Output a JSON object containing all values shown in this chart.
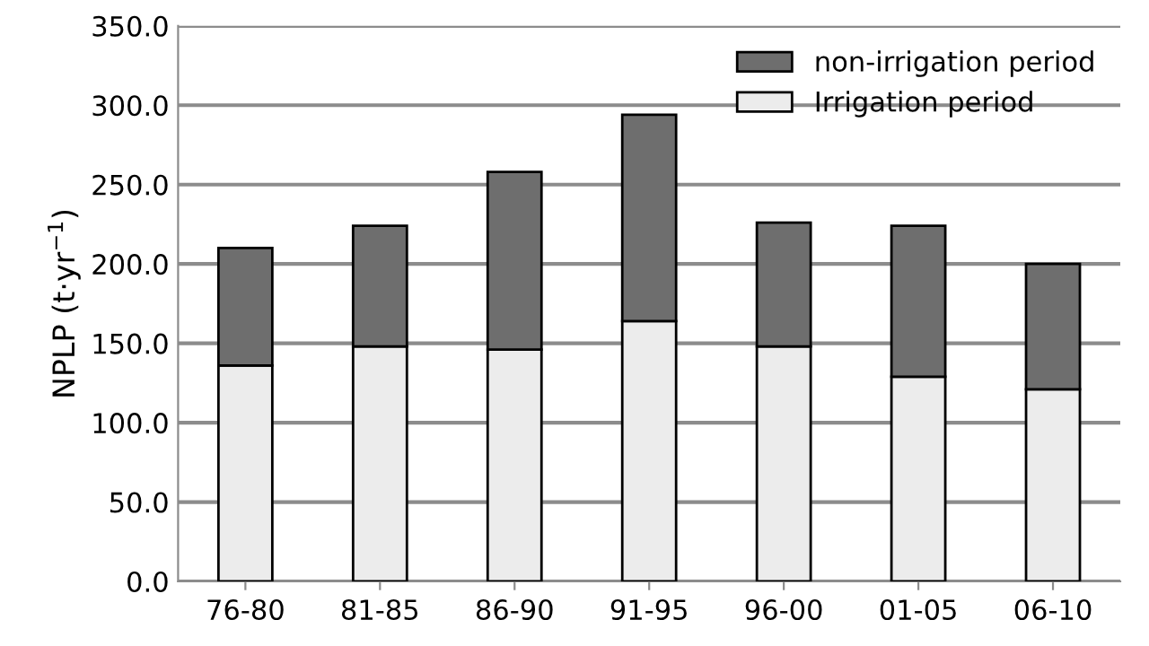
{
  "chart_data": {
    "type": "bar",
    "stacked": true,
    "ylabel": "NPLP (t·yr$^{−1}$)",
    "categories": [
      "76-80",
      "81-85",
      "86-90",
      "91-95",
      "96-00",
      "01-05",
      "06-10"
    ],
    "series": [
      {
        "name": "Irrigation period",
        "color": "#ececec",
        "values": [
          136,
          148,
          146,
          164,
          148,
          129,
          121
        ]
      },
      {
        "name": "non-irrigation period",
        "color": "#6e6e6e",
        "values": [
          74,
          76,
          112,
          130,
          78,
          95,
          79
        ]
      }
    ],
    "ylim": [
      0,
      350
    ],
    "yticks": [
      {
        "value": 0,
        "label": "0.0"
      },
      {
        "value": 50,
        "label": "50.0"
      },
      {
        "value": 100,
        "label": "100.0"
      },
      {
        "value": 150,
        "label": "150.0"
      },
      {
        "value": 200,
        "label": "200.0"
      },
      {
        "value": 250,
        "label": "250.0"
      },
      {
        "value": 300,
        "label": "300.0"
      },
      {
        "value": 350,
        "label": "350.0"
      }
    ],
    "grid": "y",
    "legend": "top right"
  }
}
